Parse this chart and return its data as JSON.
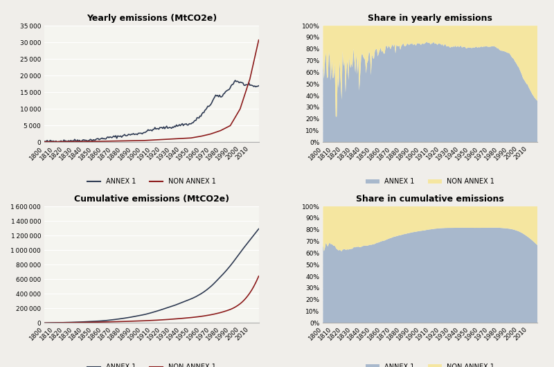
{
  "bg_color": "#f5f5f0",
  "fig_bg_color": "#f0eeea",
  "annex1_line_color": "#2e3a52",
  "nonannex1_line_color": "#8b1a1a",
  "annex1_fill_color": "#a8b8cc",
  "nonannex1_fill_color": "#f5e6a0",
  "title_fontsize": 9,
  "tick_fontsize": 6.5,
  "label_fontsize": 7,
  "yearly_ylim": [
    0,
    35000
  ],
  "yearly_yticks": [
    0,
    5000,
    10000,
    15000,
    20000,
    25000,
    30000,
    35000
  ],
  "cumulative_ylim": [
    0,
    1600000
  ],
  "cumulative_yticks": [
    0,
    200000,
    400000,
    600000,
    800000,
    1000000,
    1200000,
    1400000,
    1600000
  ],
  "share_yticks": [
    0.0,
    0.1,
    0.2,
    0.3,
    0.4,
    0.5,
    0.6,
    0.7,
    0.8,
    0.9,
    1.0
  ]
}
